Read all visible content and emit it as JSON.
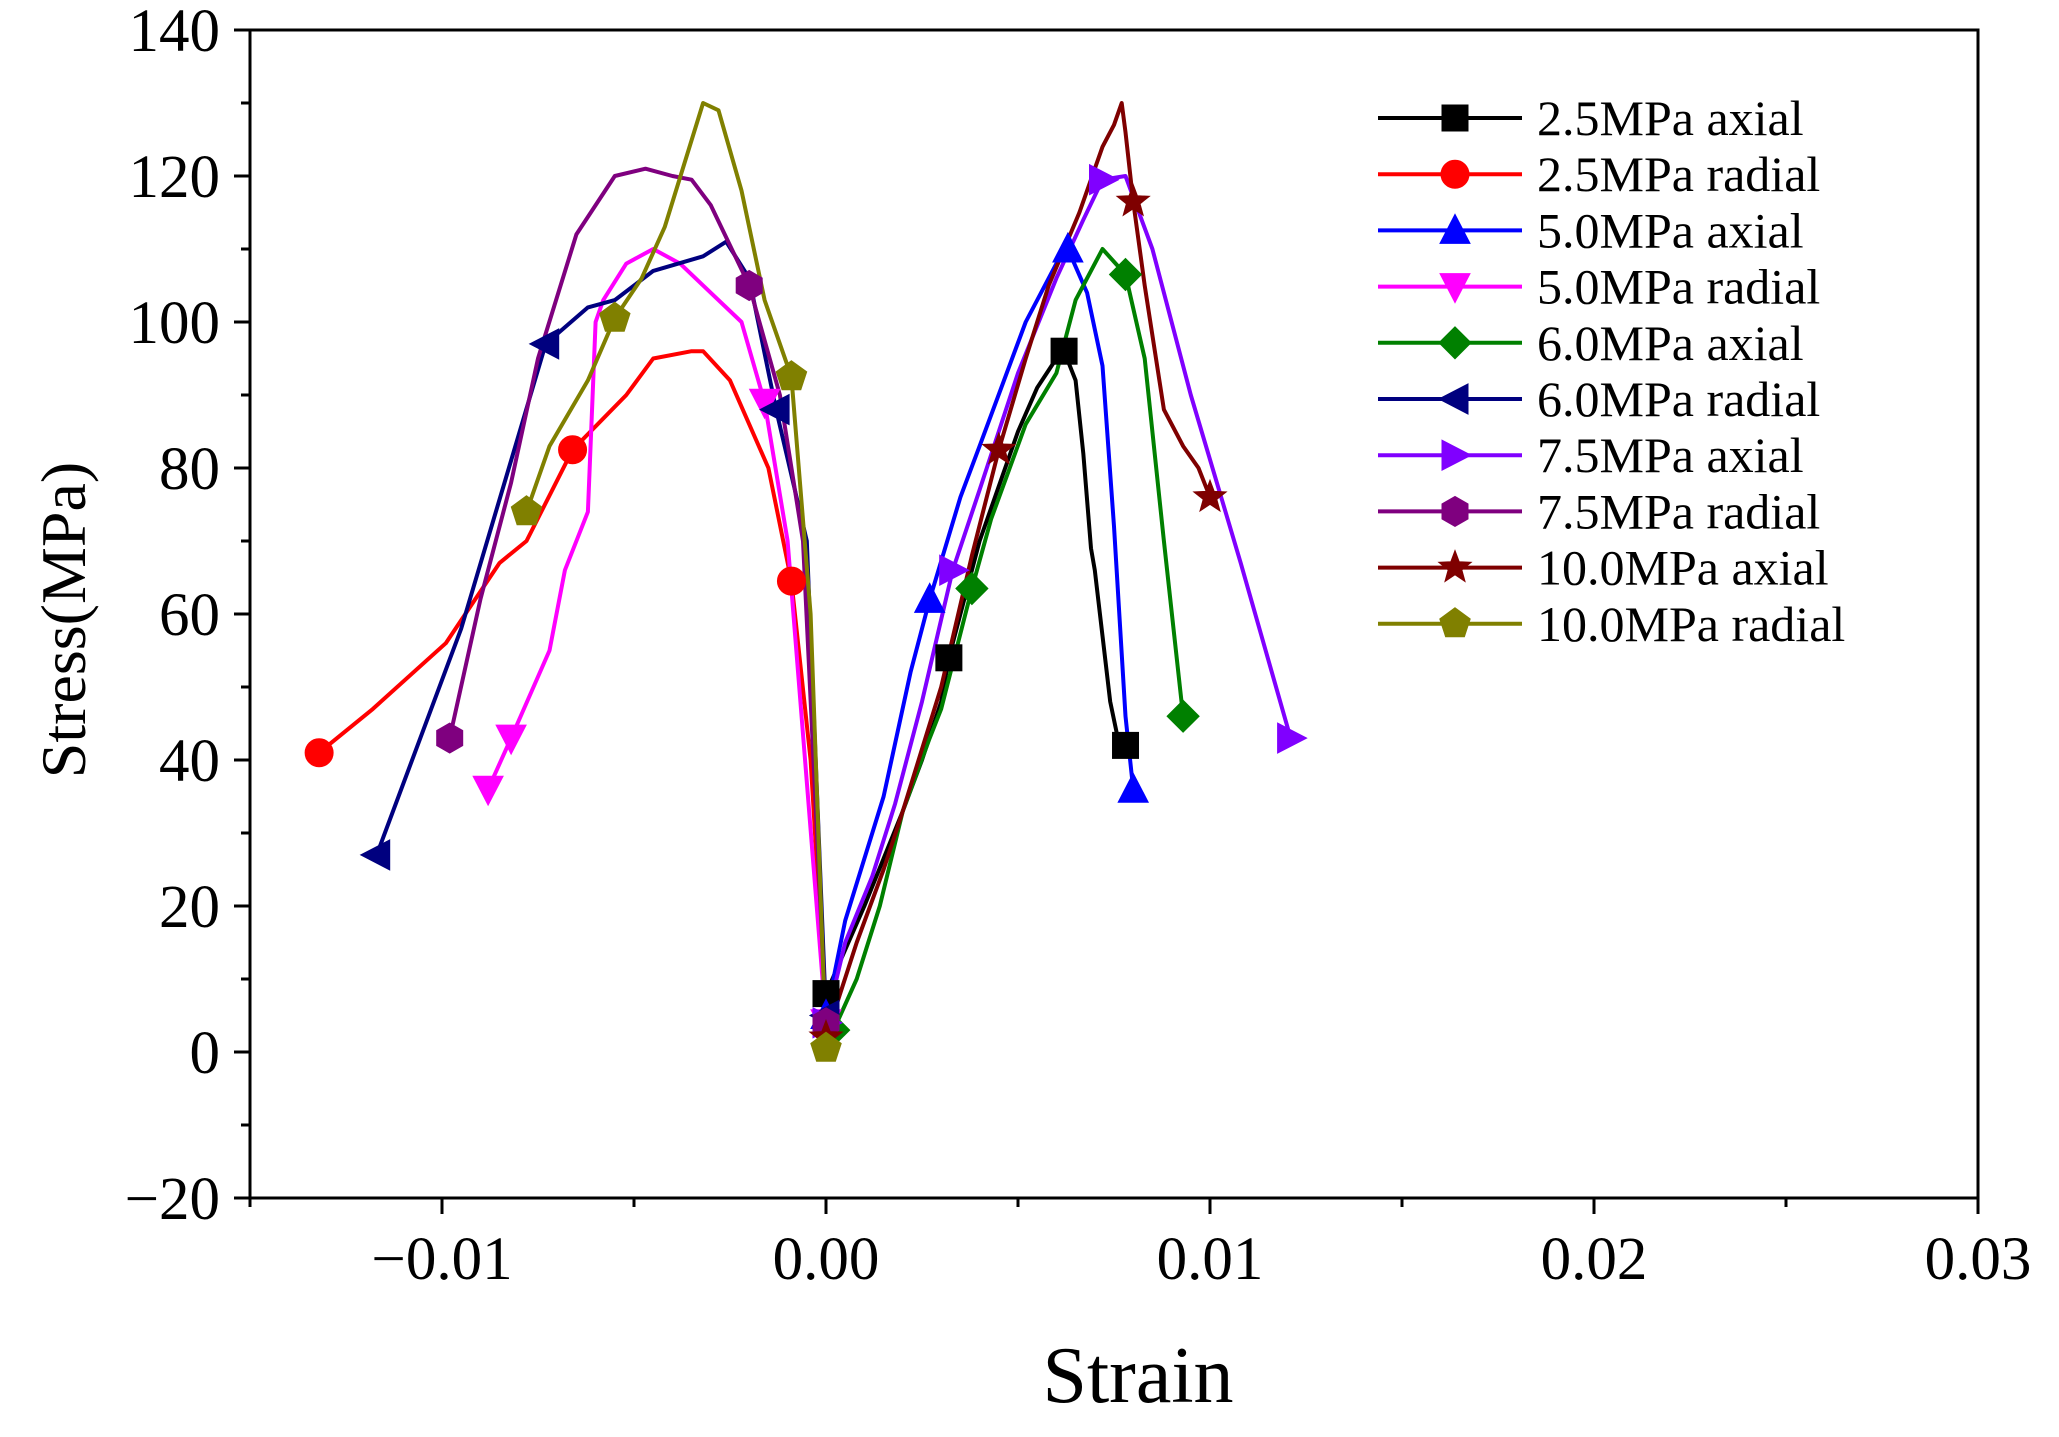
{
  "chart_data": {
    "type": "line",
    "title": "",
    "xlabel": "Strain",
    "ylabel": "Stress(MPa)",
    "xlim": [
      -0.015,
      0.03
    ],
    "ylim": [
      -20,
      140
    ],
    "xticks": [
      -0.01,
      0.0,
      0.01,
      0.02,
      0.03
    ],
    "xtick_labels": [
      "−0.01",
      "0.00",
      "0.01",
      "0.02",
      "0.03"
    ],
    "yticks": [
      -20,
      0,
      20,
      40,
      60,
      80,
      100,
      120,
      140
    ],
    "ytick_labels": [
      "−20",
      "0",
      "20",
      "40",
      "60",
      "80",
      "100",
      "120",
      "140"
    ],
    "grid": false,
    "legend_position": "top-right",
    "series": [
      {
        "name": "2.5MPa axial",
        "color": "#000000",
        "marker": "square",
        "x": [
          0.0,
          0.001,
          0.002,
          0.0025,
          0.003,
          0.0032,
          0.004,
          0.005,
          0.0055,
          0.006,
          0.0062,
          0.0065,
          0.0067,
          0.0069,
          0.007,
          0.0072,
          0.0074,
          0.0076,
          0.0078
        ],
        "y": [
          8,
          20,
          33,
          40,
          48,
          54,
          70,
          85,
          91,
          95,
          96,
          92,
          82,
          69,
          66,
          57,
          48,
          43,
          42
        ],
        "marker_index": [
          0,
          5,
          10,
          18
        ]
      },
      {
        "name": "2.5MPa radial",
        "color": "#ff0000",
        "marker": "circle",
        "x": [
          -0.0132,
          -0.0118,
          -0.0099,
          -0.0085,
          -0.0078,
          -0.0066,
          -0.0052,
          -0.0045,
          -0.0035,
          -0.0032,
          -0.0025,
          -0.0015,
          -0.0009,
          -0.0004,
          0.0
        ],
        "y": [
          41,
          47,
          56,
          67,
          70,
          82.5,
          90,
          95,
          96,
          96,
          92,
          80,
          64.5,
          40,
          5
        ],
        "marker_index": [
          0,
          5,
          12
        ]
      },
      {
        "name": "5.0MPa axial",
        "color": "#0000ff",
        "marker": "triangle-up",
        "x": [
          0.0,
          0.0005,
          0.0015,
          0.0022,
          0.0027,
          0.0035,
          0.004,
          0.0052,
          0.006,
          0.0063,
          0.0068,
          0.0072,
          0.0075,
          0.0078,
          0.008
        ],
        "y": [
          5,
          18,
          35,
          52,
          62,
          76,
          83,
          100,
          108,
          110,
          104,
          94,
          72,
          46,
          36
        ],
        "marker_index": [
          0,
          4,
          9,
          14
        ]
      },
      {
        "name": "5.0MPa radial",
        "color": "#ff00ff",
        "marker": "triangle-down",
        "x": [
          -0.0088,
          -0.0082,
          -0.0072,
          -0.0068,
          -0.0062,
          -0.006,
          -0.0058,
          -0.0052,
          -0.0045,
          -0.0038,
          -0.003,
          -0.0022,
          -0.0016,
          -0.001,
          0.0
        ],
        "y": [
          36,
          43,
          55,
          66,
          74,
          100,
          103,
          108,
          110,
          108,
          104,
          100,
          89,
          70,
          4
        ],
        "marker_index": [
          0,
          1,
          12,
          14
        ]
      },
      {
        "name": "6.0MPa axial",
        "color": "#008000",
        "marker": "diamond",
        "x": [
          0.0002,
          0.0008,
          0.0014,
          0.002,
          0.0027,
          0.003,
          0.0038,
          0.0043,
          0.0052,
          0.006,
          0.0065,
          0.0072,
          0.0078,
          0.0083,
          0.0088,
          0.0093
        ],
        "y": [
          3,
          10,
          20,
          33,
          43,
          47,
          63.5,
          73,
          86,
          93,
          103,
          110,
          106.5,
          95,
          70,
          46
        ],
        "marker_index": [
          0,
          6,
          12,
          15
        ]
      },
      {
        "name": "6.0MPa radial",
        "color": "#00007f",
        "marker": "triangle-left",
        "x": [
          -0.0117,
          -0.0095,
          -0.0073,
          -0.0062,
          -0.0055,
          -0.0045,
          -0.0032,
          -0.0026,
          -0.002,
          -0.0013,
          -0.0005,
          0.0
        ],
        "y": [
          27,
          58,
          97,
          102,
          103,
          107,
          109,
          111,
          106,
          88,
          70,
          5
        ],
        "marker_index": [
          0,
          2,
          9,
          11
        ]
      },
      {
        "name": "7.5MPa axial",
        "color": "#8000ff",
        "marker": "triangle-right",
        "x": [
          0.0,
          0.0005,
          0.0012,
          0.0018,
          0.0025,
          0.0033,
          0.004,
          0.005,
          0.006,
          0.0067,
          0.0072,
          0.0078,
          0.0085,
          0.0095,
          0.0108,
          0.0121
        ],
        "y": [
          4,
          15,
          24,
          34,
          48,
          66,
          77,
          93,
          106,
          114,
          119.5,
          120,
          110,
          90,
          67,
          43
        ],
        "marker_index": [
          0,
          5,
          10,
          15
        ]
      },
      {
        "name": "7.5MPa radial",
        "color": "#7f007f",
        "marker": "hexagon",
        "x": [
          -0.0098,
          -0.009,
          -0.0082,
          -0.0075,
          -0.0065,
          -0.0055,
          -0.0047,
          -0.004,
          -0.0035,
          -0.003,
          -0.002,
          -0.0012,
          -0.0006,
          0.0
        ],
        "y": [
          43,
          62,
          78,
          95,
          112,
          120,
          121,
          120,
          119.5,
          116,
          105,
          90,
          70,
          4
        ],
        "marker_index": [
          0,
          10,
          13
        ]
      },
      {
        "name": "10.0MPa axial",
        "color": "#7f0000",
        "marker": "star",
        "x": [
          0.0,
          0.0008,
          0.0015,
          0.002,
          0.003,
          0.0038,
          0.0045,
          0.0052,
          0.0058,
          0.0062,
          0.0066,
          0.0072,
          0.0075,
          0.0077,
          0.0078,
          0.008,
          0.0083,
          0.0088,
          0.0093,
          0.0097,
          0.01
        ],
        "y": [
          2,
          15,
          25,
          33,
          50,
          68,
          82.5,
          95,
          105,
          110,
          115,
          124,
          127,
          130,
          126,
          116.5,
          105,
          88,
          83,
          80,
          76
        ],
        "marker_index": [
          0,
          6,
          15,
          20
        ]
      },
      {
        "name": "10.0MPa radial",
        "color": "#808000",
        "marker": "pentagon",
        "x": [
          -0.0078,
          -0.0072,
          -0.0062,
          -0.0055,
          -0.0048,
          -0.0042,
          -0.0032,
          -0.0028,
          -0.0022,
          -0.0016,
          -0.0009,
          -0.0004,
          0.0
        ],
        "y": [
          74,
          83,
          92,
          100.5,
          106,
          113,
          130,
          129,
          118,
          103,
          92.5,
          60,
          0.5
        ],
        "marker_index": [
          0,
          3,
          10,
          12
        ]
      }
    ]
  }
}
